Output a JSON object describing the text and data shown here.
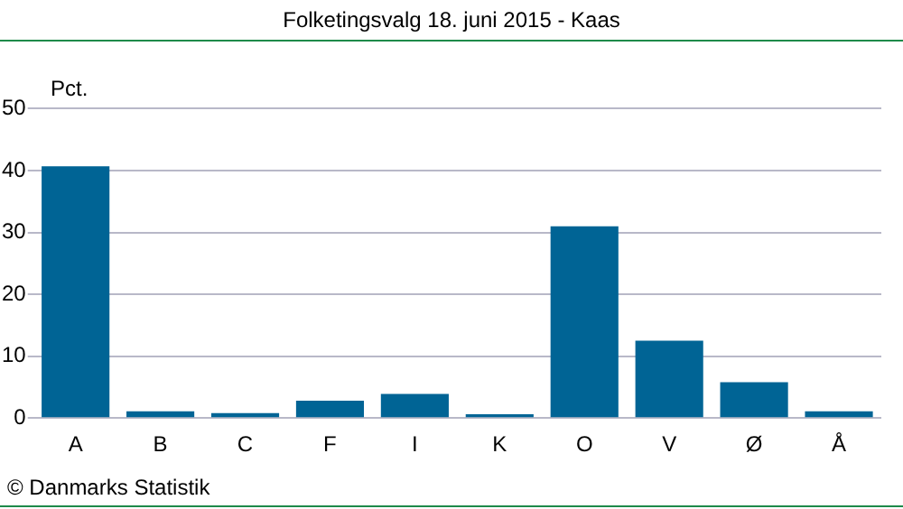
{
  "chart_data": {
    "type": "bar",
    "title": "Folketingsvalg 18. juni 2015 - Kaas",
    "ylabel": "Pct.",
    "categories": [
      "A",
      "B",
      "C",
      "F",
      "I",
      "K",
      "O",
      "V",
      "Ø",
      "Å"
    ],
    "values": [
      40.7,
      1.1,
      0.8,
      2.8,
      3.9,
      0.6,
      31.0,
      12.5,
      5.8,
      1.1
    ],
    "color": "#006495",
    "ylim": [
      0,
      50
    ],
    "yticks": [
      0,
      10,
      20,
      30,
      40,
      50
    ],
    "grid": "y",
    "legend": false,
    "annotations": [
      "© Danmarks Statistik"
    ]
  }
}
